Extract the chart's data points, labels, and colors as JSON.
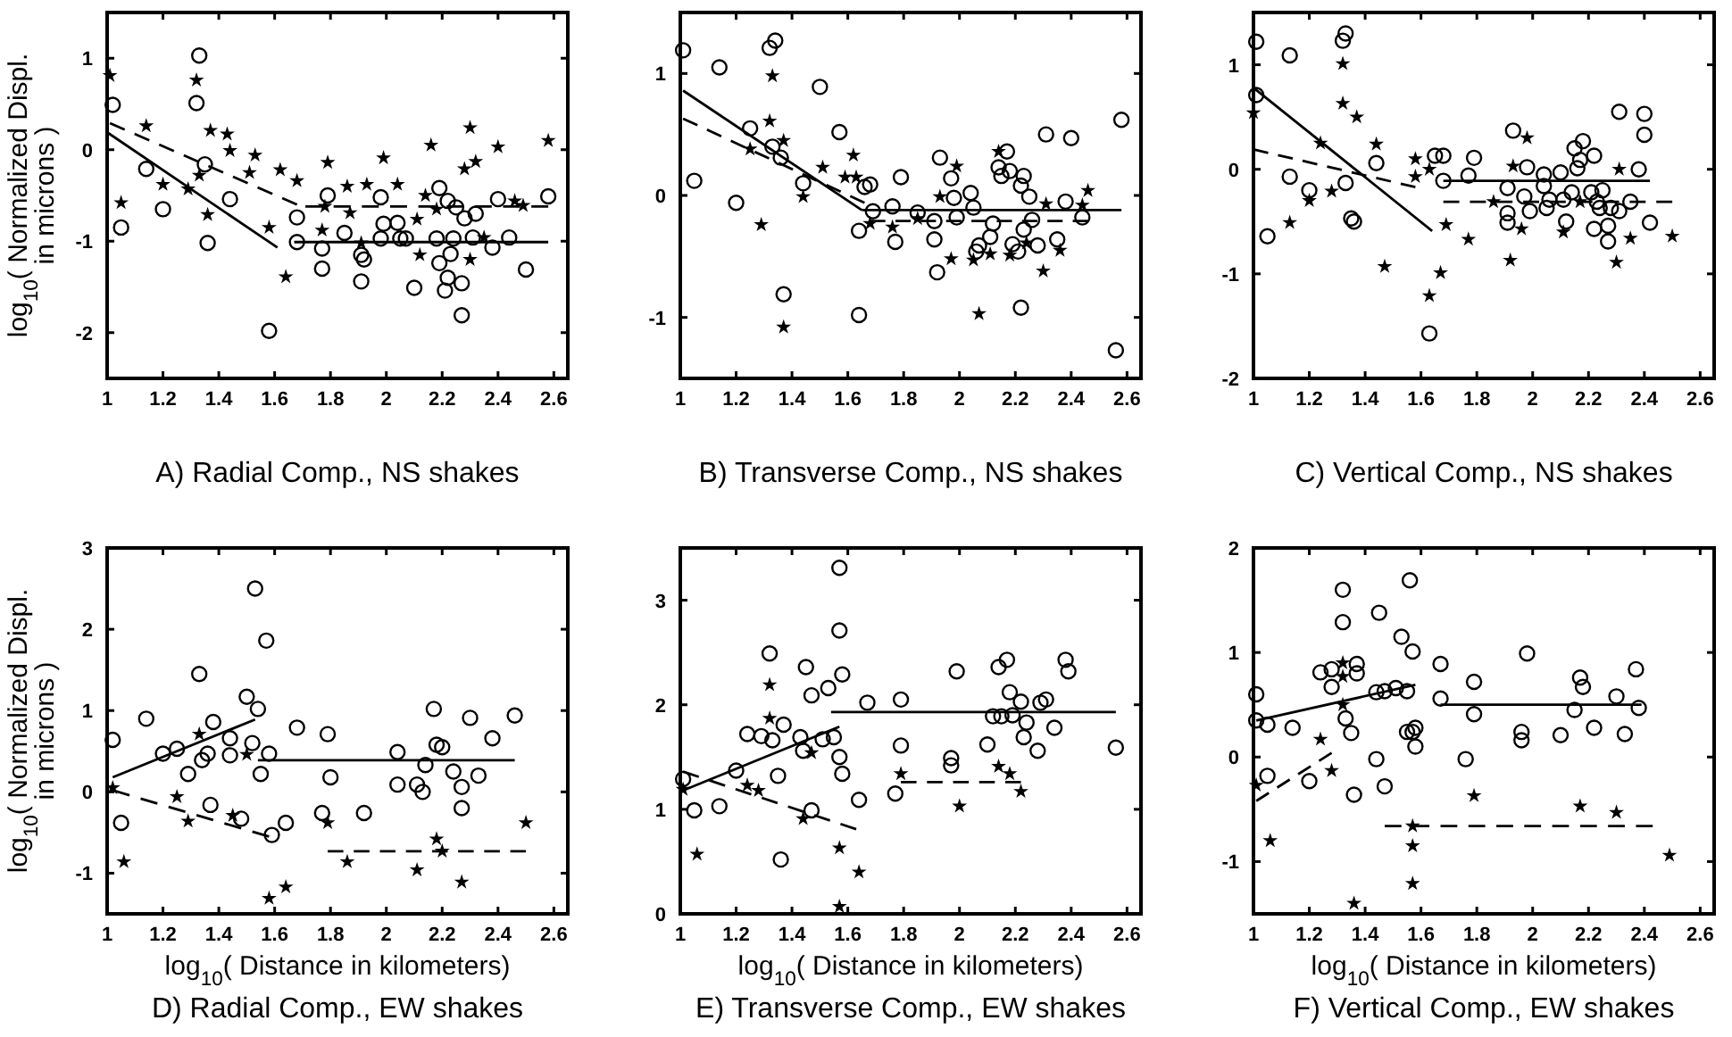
{
  "chart_data": [
    {
      "type": "scatter",
      "title": "A) Radial Comp., NS shakes",
      "ylabel": "log$_{10}$( Normalized Displ. in microns )",
      "xlim": [
        1,
        2.65
      ],
      "xticks": [
        1,
        1.2,
        1.4,
        1.6,
        1.8,
        2,
        2.2,
        2.4,
        2.6
      ],
      "ylim": [
        -2.5,
        1.5
      ],
      "yticks": [
        -2,
        -1,
        0,
        1
      ],
      "grid": false,
      "series": [
        {
          "type": "scatter",
          "marker": "circle",
          "color": "#000000",
          "x": [
            1.02,
            1.33,
            1.32,
            1.05,
            1.14,
            1.2,
            1.35,
            1.36,
            1.44,
            1.58,
            1.68,
            1.68,
            1.77,
            1.79,
            1.77,
            1.85,
            1.91,
            1.92,
            1.91,
            1.98,
            1.98,
            1.99,
            2.04,
            2.05,
            2.07,
            2.1,
            2.19,
            2.18,
            2.19,
            2.21,
            2.22,
            2.22,
            2.23,
            2.25,
            2.24,
            2.28,
            2.27,
            2.27,
            2.32,
            2.31,
            2.38,
            2.4,
            2.44,
            2.5,
            2.58
          ],
          "values": [
            0.49,
            1.03,
            0.51,
            -0.85,
            -0.21,
            -0.65,
            -0.16,
            -1.02,
            -0.54,
            -1.98,
            -0.74,
            -1.01,
            -1.08,
            -0.5,
            -1.3,
            -0.91,
            -1.15,
            -1.2,
            -1.44,
            -0.97,
            -0.52,
            -0.81,
            -0.8,
            -0.97,
            -0.97,
            -1.51,
            -0.42,
            -0.97,
            -1.24,
            -1.54,
            -1.4,
            -0.56,
            -1.14,
            -0.63,
            -0.97,
            -0.75,
            -1.46,
            -1.81,
            -0.7,
            -0.96,
            -1.07,
            -0.54,
            -0.96,
            -1.31,
            -0.51
          ]
        },
        {
          "type": "scatter",
          "marker": "star",
          "color": "#000000",
          "x": [
            1.01,
            1.05,
            1.14,
            1.2,
            1.29,
            1.32,
            1.33,
            1.37,
            1.36,
            1.43,
            1.44,
            1.53,
            1.51,
            1.58,
            1.62,
            1.64,
            1.68,
            1.77,
            1.79,
            1.78,
            1.86,
            1.87,
            1.91,
            1.93,
            1.99,
            2.04,
            2.11,
            2.12,
            2.14,
            2.16,
            2.18,
            2.28,
            2.3,
            2.3,
            2.32,
            2.35,
            2.4,
            2.46,
            2.49,
            2.58
          ],
          "values": [
            0.81,
            -0.58,
            0.26,
            -0.38,
            -0.43,
            0.76,
            -0.28,
            0.21,
            -0.71,
            0.17,
            -0.01,
            -0.06,
            -0.25,
            -0.85,
            -0.22,
            -1.39,
            -0.34,
            -0.88,
            -0.14,
            -0.62,
            -0.4,
            -0.69,
            -1.02,
            -0.38,
            -0.09,
            -0.38,
            -0.76,
            -1.15,
            -0.5,
            0.05,
            -0.65,
            -0.21,
            0.24,
            -1.2,
            -0.13,
            -0.96,
            0.03,
            -0.56,
            -0.61,
            0.1
          ]
        },
        {
          "type": "line",
          "line_style": "solid",
          "marker": "none",
          "color": "#000000",
          "x": [
            1,
            1.61
          ],
          "values": [
            0.19,
            -1.07
          ]
        },
        {
          "type": "line",
          "line_style": "solid",
          "marker": "none",
          "color": "#000000",
          "x": [
            1.67,
            2.58
          ],
          "values": [
            -1.01,
            -1.01
          ]
        },
        {
          "type": "line",
          "line_style": "dashed",
          "marker": "none",
          "color": "#000000",
          "x": [
            1.01,
            1.68
          ],
          "values": [
            0.29,
            -0.6
          ]
        },
        {
          "type": "line",
          "line_style": "dashed",
          "marker": "none",
          "color": "#000000",
          "x": [
            1.71,
            2.58
          ],
          "values": [
            -0.62,
            -0.62
          ]
        }
      ]
    },
    {
      "type": "scatter",
      "title": "B) Transverse Comp., NS shakes",
      "xlim": [
        1,
        2.65
      ],
      "xticks": [
        1,
        1.2,
        1.4,
        1.6,
        1.8,
        2,
        2.2,
        2.4,
        2.6
      ],
      "ylim": [
        -1.5,
        1.5
      ],
      "yticks": [
        -1,
        0,
        1
      ],
      "grid": false,
      "series": [
        {
          "type": "scatter",
          "marker": "circle",
          "color": "#000000",
          "x": [
            1.01,
            1.05,
            1.14,
            1.2,
            1.25,
            1.32,
            1.34,
            1.33,
            1.36,
            1.37,
            1.44,
            1.5,
            1.57,
            1.64,
            1.64,
            1.66,
            1.68,
            1.69,
            1.76,
            1.77,
            1.79,
            1.85,
            1.91,
            1.91,
            1.92,
            1.93,
            1.97,
            1.98,
            1.99,
            2.04,
            2.05,
            2.06,
            2.07,
            2.11,
            2.12,
            2.14,
            2.15,
            2.17,
            2.18,
            2.19,
            2.21,
            2.22,
            2.23,
            2.25,
            2.23,
            2.26,
            2.28,
            2.31,
            2.22,
            2.35,
            2.38,
            2.4,
            2.44,
            2.56,
            2.58
          ],
          "values": [
            1.19,
            0.12,
            1.05,
            -0.06,
            0.55,
            1.21,
            1.27,
            0.4,
            0.31,
            -0.81,
            0.1,
            0.89,
            0.52,
            -0.29,
            -0.98,
            0.07,
            0.09,
            -0.13,
            -0.09,
            -0.38,
            0.15,
            -0.14,
            -0.21,
            -0.36,
            -0.63,
            0.31,
            0.14,
            -0.02,
            -0.18,
            0.02,
            -0.1,
            -0.46,
            -0.41,
            -0.34,
            -0.23,
            0.23,
            0.16,
            0.36,
            0.2,
            -0.4,
            -0.46,
            0.08,
            0.16,
            -0.01,
            -0.28,
            -0.2,
            -0.41,
            0.5,
            -0.92,
            -0.36,
            -0.05,
            0.47,
            -0.18,
            -1.27,
            0.62
          ]
        },
        {
          "type": "scatter",
          "marker": "star",
          "color": "#000000",
          "x": [
            1.33,
            1.32,
            1.25,
            1.29,
            1.37,
            1.37,
            1.44,
            1.51,
            1.59,
            1.62,
            1.63,
            1.68,
            1.76,
            1.85,
            1.93,
            1.97,
            1.99,
            2.05,
            2.07,
            2.11,
            2.14,
            2.18,
            2.24,
            2.3,
            2.31,
            2.36,
            2.44,
            2.46
          ],
          "values": [
            0.98,
            0.61,
            0.38,
            -0.24,
            0.45,
            -1.08,
            -0.01,
            0.23,
            0.15,
            0.33,
            0.15,
            -0.23,
            -0.26,
            -0.19,
            -0.01,
            -0.52,
            0.24,
            -0.53,
            -0.97,
            -0.48,
            0.36,
            -0.49,
            -0.39,
            -0.62,
            -0.07,
            -0.45,
            -0.08,
            0.04
          ]
        },
        {
          "type": "line",
          "line_style": "solid",
          "marker": "none",
          "color": "#000000",
          "x": [
            1.01,
            1.65
          ],
          "values": [
            0.86,
            -0.12
          ]
        },
        {
          "type": "line",
          "line_style": "solid",
          "marker": "none",
          "color": "#000000",
          "x": [
            1.65,
            2.58
          ],
          "values": [
            -0.12,
            -0.12
          ]
        },
        {
          "type": "line",
          "line_style": "dashed",
          "marker": "none",
          "color": "#000000",
          "x": [
            1.01,
            1.66
          ],
          "values": [
            0.63,
            -0.06
          ]
        },
        {
          "type": "line",
          "line_style": "dashed",
          "marker": "none",
          "color": "#000000",
          "x": [
            1.68,
            2.46
          ],
          "values": [
            -0.21,
            -0.21
          ]
        }
      ]
    },
    {
      "type": "scatter",
      "title": "C) Vertical Comp., NS shakes",
      "xlim": [
        1,
        2.65
      ],
      "xticks": [
        1,
        1.2,
        1.4,
        1.6,
        1.8,
        2,
        2.2,
        2.4,
        2.6
      ],
      "ylim": [
        -2,
        1.5
      ],
      "yticks": [
        -2,
        -1,
        0,
        1
      ],
      "grid": false,
      "series": [
        {
          "type": "scatter",
          "marker": "circle",
          "color": "#000000",
          "x": [
            1.01,
            1.01,
            1.13,
            1.13,
            1.2,
            1.05,
            1.32,
            1.33,
            1.33,
            1.35,
            1.36,
            1.44,
            1.63,
            1.65,
            1.68,
            1.68,
            1.77,
            1.79,
            1.91,
            1.91,
            1.91,
            1.93,
            1.97,
            1.98,
            1.99,
            2.04,
            2.04,
            2.05,
            2.06,
            2.1,
            2.11,
            2.12,
            2.14,
            2.15,
            2.16,
            2.17,
            2.18,
            2.21,
            2.22,
            2.22,
            2.23,
            2.24,
            2.25,
            2.27,
            2.27,
            2.28,
            2.31,
            2.31,
            2.35,
            2.38,
            2.4,
            2.4,
            2.42
          ],
          "values": [
            1.22,
            0.71,
            1.09,
            -0.07,
            -0.2,
            -0.64,
            1.23,
            1.3,
            -0.13,
            -0.47,
            -0.5,
            0.06,
            -1.57,
            0.13,
            0.13,
            -0.11,
            -0.06,
            0.11,
            -0.18,
            -0.42,
            -0.51,
            0.37,
            -0.26,
            0.02,
            -0.4,
            -0.05,
            -0.16,
            -0.37,
            -0.29,
            -0.03,
            -0.29,
            -0.5,
            -0.22,
            0.2,
            0.01,
            0.09,
            0.27,
            -0.22,
            0.13,
            -0.57,
            -0.31,
            -0.37,
            -0.2,
            -0.54,
            -0.69,
            -0.37,
            -0.4,
            0.55,
            -0.31,
            0,
            0.53,
            0.33,
            -0.51
          ]
        },
        {
          "type": "scatter",
          "marker": "star",
          "color": "#000000",
          "x": [
            1,
            1.13,
            1.2,
            1.24,
            1.28,
            1.32,
            1.32,
            1.37,
            1.44,
            1.47,
            1.58,
            1.58,
            1.63,
            1.63,
            1.67,
            1.69,
            1.77,
            1.86,
            1.92,
            1.93,
            1.96,
            1.98,
            2.11,
            2.17,
            2.3,
            2.31,
            2.35,
            2.5
          ],
          "values": [
            0.54,
            -0.51,
            -0.3,
            0.25,
            -0.21,
            0.63,
            1.01,
            0.5,
            0.24,
            -0.93,
            0.1,
            -0.07,
            0,
            -1.21,
            -0.99,
            -0.53,
            -0.67,
            -0.31,
            -0.87,
            0.03,
            -0.57,
            0.3,
            -0.6,
            -0.31,
            -0.89,
            0,
            -0.66,
            -0.64
          ]
        },
        {
          "type": "line",
          "line_style": "solid",
          "marker": "none",
          "color": "#000000",
          "x": [
            1,
            1.64
          ],
          "values": [
            0.78,
            -0.59
          ]
        },
        {
          "type": "line",
          "line_style": "solid",
          "marker": "none",
          "color": "#000000",
          "x": [
            1.68,
            2.42
          ],
          "values": [
            -0.11,
            -0.11
          ]
        },
        {
          "type": "line",
          "line_style": "dashed",
          "marker": "none",
          "color": "#000000",
          "x": [
            1,
            1.58
          ],
          "values": [
            0.19,
            -0.17
          ]
        },
        {
          "type": "line",
          "line_style": "dashed",
          "marker": "none",
          "color": "#000000",
          "x": [
            1.68,
            2.5
          ],
          "values": [
            -0.31,
            -0.31
          ]
        }
      ]
    },
    {
      "type": "scatter",
      "title": "D) Radial Comp., EW shakes",
      "xlabel": "log$_{10}$( Distance in kilometers)",
      "ylabel": "log$_{10}$( Normalized Displ. in microns )",
      "xlim": [
        1,
        2.65
      ],
      "xticks": [
        1,
        1.2,
        1.4,
        1.6,
        1.8,
        2,
        2.2,
        2.4,
        2.6
      ],
      "ylim": [
        -1.5,
        3
      ],
      "yticks": [
        -1,
        0,
        1,
        2,
        3
      ],
      "grid": false,
      "series": [
        {
          "type": "scatter",
          "marker": "circle",
          "color": "#000000",
          "x": [
            1.02,
            1.05,
            1.14,
            1.2,
            1.25,
            1.29,
            1.33,
            1.34,
            1.36,
            1.38,
            1.37,
            1.44,
            1.44,
            1.48,
            1.5,
            1.52,
            1.53,
            1.54,
            1.55,
            1.57,
            1.58,
            1.59,
            1.64,
            1.68,
            1.77,
            1.79,
            1.8,
            1.92,
            2.04,
            2.04,
            2.11,
            2.13,
            2.14,
            2.17,
            2.18,
            2.2,
            2.24,
            2.27,
            2.27,
            2.3,
            2.33,
            2.38,
            2.46
          ],
          "values": [
            0.64,
            -0.38,
            0.9,
            0.47,
            0.53,
            0.22,
            1.45,
            0.39,
            0.47,
            0.86,
            -0.16,
            0.45,
            0.66,
            -0.33,
            1.17,
            0.6,
            2.5,
            1.02,
            0.22,
            1.86,
            0.47,
            -0.53,
            -0.38,
            0.79,
            -0.26,
            0.71,
            0.18,
            -0.26,
            0.49,
            0.09,
            0.09,
            0,
            0.33,
            1.02,
            0.58,
            0.55,
            0.25,
            0.06,
            -0.2,
            0.91,
            0.2,
            0.66,
            0.94
          ]
        },
        {
          "type": "scatter",
          "marker": "star",
          "color": "#000000",
          "x": [
            1.02,
            1.06,
            1.25,
            1.29,
            1.33,
            1.45,
            1.5,
            1.58,
            1.64,
            1.79,
            1.86,
            2.11,
            2.18,
            2.2,
            2.27,
            2.5
          ],
          "values": [
            0.05,
            -0.86,
            -0.06,
            -0.36,
            0.71,
            -0.29,
            0.46,
            -1.31,
            -1.17,
            -0.38,
            -0.86,
            -0.96,
            -0.58,
            -0.73,
            -1.11,
            -0.38
          ]
        },
        {
          "type": "line",
          "line_style": "solid",
          "marker": "none",
          "color": "#000000",
          "x": [
            1.02,
            1.53
          ],
          "values": [
            0.18,
            0.89
          ]
        },
        {
          "type": "line",
          "line_style": "solid",
          "marker": "none",
          "color": "#000000",
          "x": [
            1.54,
            2.46
          ],
          "values": [
            0.39,
            0.39
          ]
        },
        {
          "type": "line",
          "line_style": "dashed",
          "marker": "none",
          "color": "#000000",
          "x": [
            1.02,
            1.58
          ],
          "values": [
            0.02,
            -0.55
          ]
        },
        {
          "type": "line",
          "line_style": "dashed",
          "marker": "none",
          "color": "#000000",
          "x": [
            1.79,
            2.5
          ],
          "values": [
            -0.73,
            -0.73
          ]
        }
      ]
    },
    {
      "type": "scatter",
      "title": "E) Transverse Comp., EW shakes",
      "xlabel": "log$_{10}$( Distance in kilometers)",
      "xlim": [
        1,
        2.65
      ],
      "xticks": [
        1,
        1.2,
        1.4,
        1.6,
        1.8,
        2,
        2.2,
        2.4,
        2.6
      ],
      "ylim": [
        0,
        3.5
      ],
      "yticks": [
        0,
        1,
        2,
        3
      ],
      "grid": false,
      "series": [
        {
          "type": "scatter",
          "marker": "circle",
          "color": "#000000",
          "x": [
            1.01,
            1.05,
            1.14,
            1.2,
            1.24,
            1.29,
            1.32,
            1.33,
            1.35,
            1.37,
            1.36,
            1.43,
            1.44,
            1.45,
            1.47,
            1.47,
            1.51,
            1.53,
            1.55,
            1.57,
            1.57,
            1.57,
            1.58,
            1.58,
            1.64,
            1.67,
            1.77,
            1.79,
            1.79,
            1.97,
            1.97,
            1.99,
            2.1,
            2.12,
            2.14,
            2.15,
            2.17,
            2.18,
            2.19,
            2.22,
            2.23,
            2.24,
            2.28,
            2.29,
            2.31,
            2.34,
            2.38,
            2.39,
            2.56
          ],
          "values": [
            1.29,
            0.99,
            1.03,
            1.37,
            1.72,
            1.7,
            2.49,
            1.66,
            1.32,
            1.81,
            0.52,
            1.69,
            1.56,
            2.36,
            2.09,
            0.99,
            1.67,
            2.16,
            1.69,
            3.31,
            2.71,
            1.5,
            2.29,
            1.34,
            1.09,
            2.02,
            1.15,
            2.05,
            1.61,
            1.49,
            1.42,
            2.32,
            1.62,
            1.89,
            2.36,
            1.89,
            2.43,
            2.12,
            1.9,
            2.03,
            1.69,
            1.83,
            1.56,
            2.02,
            2.05,
            1.78,
            2.43,
            2.32,
            1.59
          ]
        },
        {
          "type": "scatter",
          "marker": "star",
          "color": "#000000",
          "x": [
            1.01,
            1.06,
            1.32,
            1.32,
            1.24,
            1.28,
            1.44,
            1.47,
            1.57,
            1.57,
            1.64,
            1.79,
            2,
            2.14,
            2.18,
            2.22
          ],
          "values": [
            1.19,
            0.57,
            2.19,
            1.87,
            1.23,
            1.18,
            0.91,
            1.54,
            0.63,
            0.07,
            0.4,
            1.34,
            1.03,
            1.41,
            1.34,
            1.17
          ]
        },
        {
          "type": "line",
          "line_style": "solid",
          "marker": "none",
          "color": "#000000",
          "x": [
            1.01,
            1.57
          ],
          "values": [
            1.18,
            1.79
          ]
        },
        {
          "type": "line",
          "line_style": "solid",
          "marker": "none",
          "color": "#000000",
          "x": [
            1.54,
            2.56
          ],
          "values": [
            1.93,
            1.93
          ]
        },
        {
          "type": "line",
          "line_style": "dashed",
          "marker": "none",
          "color": "#000000",
          "x": [
            1.01,
            1.63
          ],
          "values": [
            1.36,
            0.81
          ]
        },
        {
          "type": "line",
          "line_style": "dashed",
          "marker": "none",
          "color": "#000000",
          "x": [
            1.79,
            2.22
          ],
          "values": [
            1.26,
            1.26
          ]
        }
      ]
    },
    {
      "type": "scatter",
      "title": "F) Vertical Comp., EW shakes",
      "xlabel": "log$_{10}$( Distance in kilometers)",
      "xlim": [
        1,
        2.65
      ],
      "xticks": [
        1,
        1.2,
        1.4,
        1.6,
        1.8,
        2,
        2.2,
        2.4,
        2.6
      ],
      "ylim": [
        -1.5,
        2
      ],
      "yticks": [
        -1,
        0,
        1,
        2
      ],
      "grid": false,
      "series": [
        {
          "type": "scatter",
          "marker": "circle",
          "color": "#000000",
          "x": [
            1.01,
            1.01,
            1.05,
            1.05,
            1.14,
            1.2,
            1.24,
            1.28,
            1.28,
            1.32,
            1.32,
            1.33,
            1.35,
            1.37,
            1.37,
            1.36,
            1.44,
            1.45,
            1.44,
            1.47,
            1.47,
            1.51,
            1.53,
            1.55,
            1.55,
            1.56,
            1.57,
            1.58,
            1.57,
            1.58,
            1.67,
            1.67,
            1.76,
            1.79,
            1.79,
            1.96,
            1.96,
            1.98,
            2.1,
            2.15,
            2.17,
            2.18,
            2.22,
            2.3,
            2.33,
            2.37,
            2.38
          ],
          "values": [
            0.6,
            0.35,
            0.31,
            -0.18,
            0.28,
            -0.23,
            0.81,
            0.84,
            0.67,
            1.6,
            1.29,
            0.37,
            0.23,
            0.89,
            0.8,
            -0.36,
            0.62,
            1.38,
            -0.02,
            0.63,
            -0.28,
            0.66,
            1.15,
            0.63,
            0.24,
            1.69,
            0.24,
            0.28,
            1.01,
            0.1,
            0.89,
            0.56,
            -0.02,
            0.72,
            0.41,
            0.24,
            0.16,
            0.99,
            0.21,
            0.45,
            0.76,
            0.67,
            0.28,
            0.58,
            0.22,
            0.84,
            0.47
          ]
        },
        {
          "type": "scatter",
          "marker": "star",
          "color": "#000000",
          "x": [
            1.01,
            1.06,
            1.24,
            1.28,
            1.32,
            1.32,
            1.32,
            1.36,
            1.57,
            1.57,
            1.57,
            1.79,
            2.17,
            2.3,
            2.49
          ],
          "values": [
            -0.27,
            -0.8,
            0.17,
            -0.13,
            0.9,
            0.77,
            0.5,
            -1.4,
            -0.66,
            -0.85,
            -1.21,
            -0.37,
            -0.47,
            -0.53,
            -0.94
          ]
        },
        {
          "type": "line",
          "line_style": "solid",
          "marker": "none",
          "color": "#000000",
          "x": [
            1.01,
            1.58
          ],
          "values": [
            0.35,
            0.69
          ]
        },
        {
          "type": "line",
          "line_style": "solid",
          "marker": "none",
          "color": "#000000",
          "x": [
            1.67,
            2.39
          ],
          "values": [
            0.5,
            0.5
          ]
        },
        {
          "type": "line",
          "line_style": "dashed",
          "marker": "none",
          "color": "#000000",
          "x": [
            1.01,
            1.28
          ],
          "values": [
            -0.42,
            0.04
          ]
        },
        {
          "type": "line",
          "line_style": "dashed",
          "marker": "none",
          "color": "#000000",
          "x": [
            1.47,
            2.43
          ],
          "values": [
            -0.66,
            -0.66
          ]
        }
      ]
    }
  ]
}
